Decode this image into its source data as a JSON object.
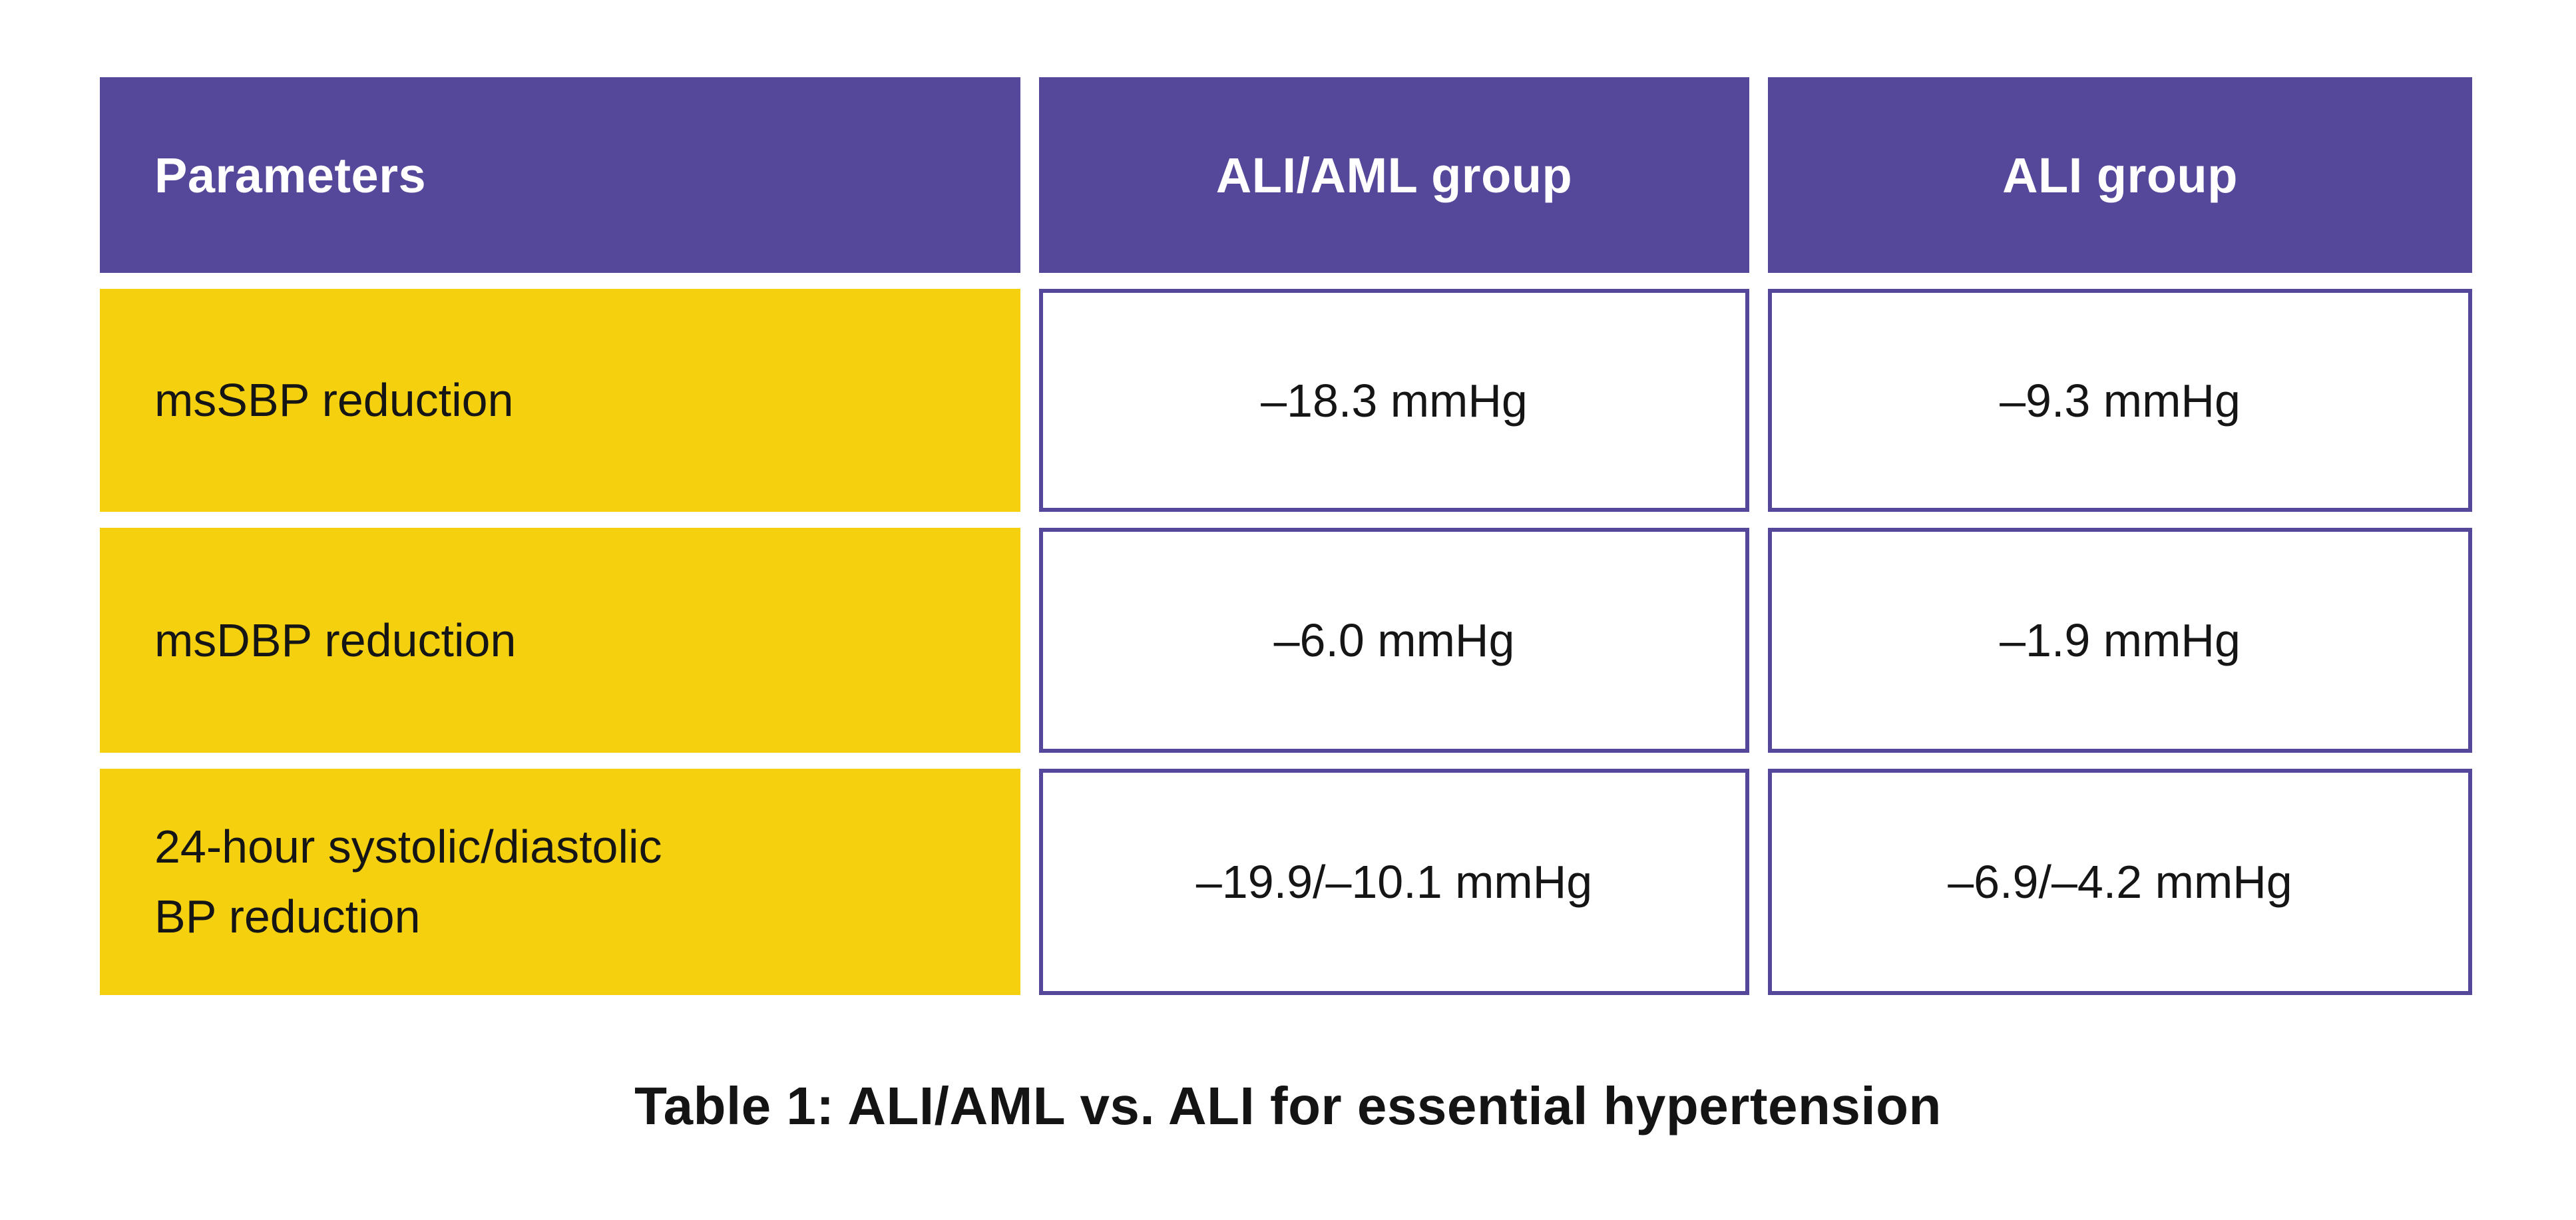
{
  "colors": {
    "header_bg": "#55489A",
    "label_bg": "#F4D00F",
    "value_border": "#55489A",
    "header_text": "#FFFFFF",
    "body_text": "#151515",
    "page_bg": "#FFFFFF"
  },
  "table": {
    "columns": [
      "Parameters",
      "ALI/AML group",
      "ALI group"
    ],
    "rows": [
      {
        "label": "msSBP reduction",
        "values": [
          "–18.3 mmHg",
          "–9.3 mmHg"
        ]
      },
      {
        "label": "msDBP reduction",
        "values": [
          "–6.0 mmHg",
          "–1.9 mmHg"
        ]
      },
      {
        "label": "24-hour systolic/diastolic\nBP reduction",
        "values": [
          "–19.9/–10.1 mmHg",
          "–6.9/–4.2 mmHg"
        ]
      }
    ],
    "caption": "Table 1: ALI/AML vs. ALI for essential hypertension"
  },
  "chart_data": {
    "type": "table",
    "title": "Table 1: ALI/AML vs. ALI for essential hypertension",
    "columns": [
      "Parameters",
      "ALI/AML group",
      "ALI group"
    ],
    "rows": [
      [
        "msSBP reduction",
        "–18.3 mmHg",
        "–9.3 mmHg"
      ],
      [
        "msDBP reduction",
        "–6.0 mmHg",
        "–1.9 mmHg"
      ],
      [
        "24-hour systolic/diastolic BP reduction",
        "–19.9/–10.1 mmHg",
        "–6.9/–4.2 mmHg"
      ]
    ],
    "values_numeric": {
      "msSBP_reduction_mmHg": {
        "ALI_AML": -18.3,
        "ALI": -9.3
      },
      "msDBP_reduction_mmHg": {
        "ALI_AML": -6.0,
        "ALI": -1.9
      },
      "24h_systolic_diastolic_BP_reduction_mmHg": {
        "ALI_AML": [
          -19.9,
          -10.1
        ],
        "ALI": [
          -6.9,
          -4.2
        ]
      }
    }
  }
}
